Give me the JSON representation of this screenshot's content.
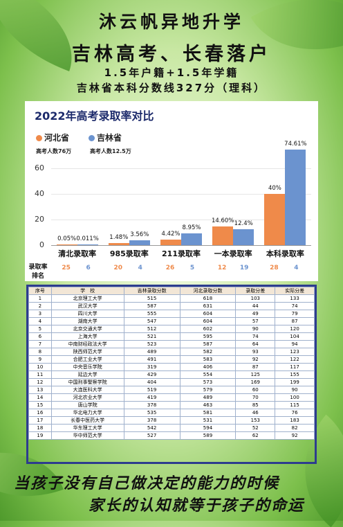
{
  "header": {
    "line1": "沐云帆异地升学",
    "line2": "吉林高考、长春落户",
    "line3": "1.5年户籍+1.5年学籍",
    "line4": "吉林省本科分数线327分（理科）"
  },
  "chart_data": {
    "type": "bar",
    "title": "2022年高考录取率对比",
    "categories": [
      "清北录取率",
      "985录取率",
      "211录取率",
      "一本录取率",
      "本科录取率"
    ],
    "series": [
      {
        "name": "河北省",
        "values": [
          0.05,
          1.48,
          4.42,
          14.6,
          40
        ],
        "labels": [
          "0.05%",
          "1.48%",
          "4.42%",
          "14.60%",
          "40%"
        ],
        "color": "#ef8a4a"
      },
      {
        "name": "吉林省",
        "values": [
          0.011,
          3.56,
          8.95,
          12.4,
          74.61
        ],
        "labels": [
          "0.011%",
          "3.56%",
          "8.95%",
          "12.4%",
          "74.61%"
        ],
        "color": "#6b93cf"
      }
    ],
    "ylim": [
      0,
      80
    ],
    "yticks": [
      "0",
      "20",
      "40",
      "60"
    ],
    "grid": true,
    "legend_position": "top-left",
    "legend_notes": [
      "高考人数76万",
      "高考人数12.5万"
    ],
    "rank_label": [
      "录取率",
      "排名"
    ],
    "ranks": {
      "hebei": [
        25,
        20,
        26,
        12,
        28
      ],
      "jilin": [
        6,
        4,
        5,
        19,
        4
      ]
    }
  },
  "table": {
    "headers": [
      "序号",
      "学　校",
      "吉林录取分数",
      "河北录取分数",
      "录取分差",
      "实际分差"
    ],
    "rows": [
      [
        "1",
        "北京理工大学",
        "515",
        "618",
        "103",
        "133"
      ],
      [
        "2",
        "武汉大学",
        "587",
        "631",
        "44",
        "74"
      ],
      [
        "3",
        "四川大学",
        "555",
        "604",
        "49",
        "79"
      ],
      [
        "4",
        "湖南大学",
        "547",
        "604",
        "57",
        "87"
      ],
      [
        "5",
        "北京交通大学",
        "512",
        "602",
        "90",
        "120"
      ],
      [
        "6",
        "上海大学",
        "521",
        "595",
        "74",
        "104"
      ],
      [
        "7",
        "中南财经政法大学",
        "523",
        "587",
        "64",
        "94"
      ],
      [
        "8",
        "陕西师范大学",
        "489",
        "582",
        "93",
        "123"
      ],
      [
        "9",
        "合肥工业大学",
        "491",
        "583",
        "92",
        "122"
      ],
      [
        "10",
        "中央音乐学院",
        "319",
        "406",
        "87",
        "117"
      ],
      [
        "11",
        "延边大学",
        "429",
        "554",
        "125",
        "155"
      ],
      [
        "12",
        "中国刑事警察学院",
        "404",
        "573",
        "169",
        "199"
      ],
      [
        "13",
        "大连医科大学",
        "519",
        "579",
        "60",
        "90"
      ],
      [
        "14",
        "河北农业大学",
        "419",
        "489",
        "70",
        "100"
      ],
      [
        "15",
        "唐山学院",
        "378",
        "463",
        "85",
        "115"
      ],
      [
        "16",
        "华北电力大学",
        "535",
        "581",
        "46",
        "76"
      ],
      [
        "17",
        "长春中医药大学",
        "378",
        "531",
        "153",
        "183"
      ],
      [
        "18",
        "华东理工大学",
        "542",
        "594",
        "52",
        "82"
      ],
      [
        "19",
        "华中师范大学",
        "527",
        "589",
        "62",
        "92"
      ]
    ]
  },
  "slogan": {
    "line1": "当孩子没有自己做决定的能力的时候",
    "line2": "家长的认知就等于孩子的命运"
  }
}
